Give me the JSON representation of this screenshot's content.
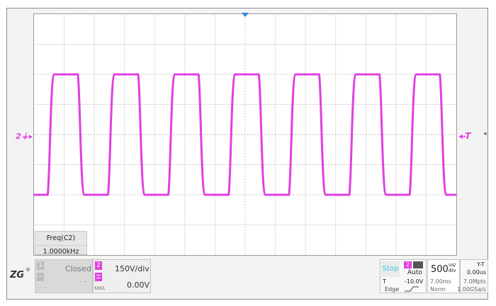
{
  "channel_marker": "2",
  "trigger_marker": "T",
  "measurement": {
    "name": "Freq(C2)",
    "value": "1.0000kHz"
  },
  "channel1": {
    "number": "1",
    "status": "Closed",
    "minus": "-",
    "dashes": "- -",
    "dots": "- - -"
  },
  "channel2": {
    "number": "2",
    "scale": "150V/div",
    "offset": "0.00V",
    "probe": "5001"
  },
  "trigger": {
    "run_state": "Stop",
    "source": "2",
    "mode": "Auto",
    "type_label": "T",
    "level": "-10.0V",
    "type": "Edge"
  },
  "timebase": {
    "value": "500",
    "unit_top": "us/",
    "unit_bottom": "div",
    "delay": "7.00ms",
    "mode": "Norm"
  },
  "display": {
    "mode": "Y-T",
    "position": "0.00us",
    "points": "7.0Mpts",
    "sample_rate": "1.00GSa/s"
  },
  "signal": {
    "color": "#e040e0",
    "frequency_khz": 1.0,
    "duty_cycle": 0.5,
    "high_level_div": 2,
    "low_level_div": -2,
    "periods_shown": 7
  }
}
